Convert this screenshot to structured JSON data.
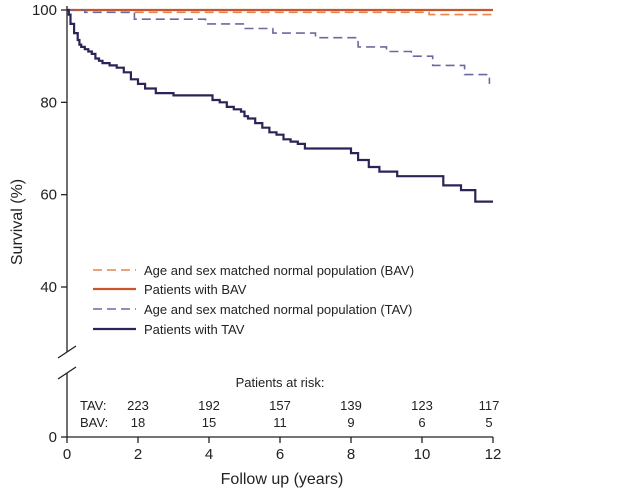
{
  "chart_data": {
    "type": "line",
    "xlabel": "Follow up (years)",
    "ylabel": "Survival (%)",
    "xlim": [
      0,
      12
    ],
    "ylim": [
      0,
      100
    ],
    "axis_break": [
      28,
      32
    ],
    "x_ticks": [
      "0",
      "2",
      "4",
      "6",
      "8",
      "10",
      "12"
    ],
    "y_ticks": [
      "0",
      "40",
      "60",
      "80",
      "100"
    ],
    "grid": false,
    "legend_position": "lower-left",
    "series": [
      {
        "name": "Age and sex matched normal population (BAV)",
        "color": "#e8834e",
        "style": "dashed",
        "x": [
          0,
          1.5,
          1.5,
          10.2,
          10.2,
          12
        ],
        "y": [
          100,
          100,
          99.5,
          99.5,
          99,
          99
        ]
      },
      {
        "name": "Patients with BAV",
        "color": "#c9552a",
        "style": "solid",
        "x": [
          0,
          12
        ],
        "y": [
          100,
          100
        ]
      },
      {
        "name": "Age and sex matched normal population (TAV)",
        "color": "#6b6aa0",
        "style": "dashed",
        "x": [
          0,
          0.5,
          0.5,
          1.9,
          1.9,
          3.9,
          3.9,
          5.0,
          5.0,
          5.8,
          5.8,
          7.0,
          7.0,
          8.2,
          8.2,
          9.0,
          9.0,
          9.7,
          9.7,
          10.3,
          10.3,
          11.2,
          11.2,
          11.9,
          11.9
        ],
        "y": [
          100,
          100,
          99.5,
          99.5,
          98,
          98,
          97,
          97,
          96,
          96,
          95,
          95,
          94,
          94,
          92,
          92,
          91,
          91,
          90,
          90,
          88,
          88,
          86,
          86,
          84
        ]
      },
      {
        "name": "Patients with TAV",
        "color": "#2b2458",
        "style": "solid",
        "x": [
          0,
          0.05,
          0.1,
          0.2,
          0.3,
          0.35,
          0.4,
          0.5,
          0.6,
          0.7,
          0.8,
          0.9,
          1.0,
          1.1,
          1.2,
          1.4,
          1.6,
          1.8,
          2.0,
          2.2,
          2.5,
          3.0,
          3.5,
          4.0,
          4.1,
          4.3,
          4.5,
          4.7,
          4.9,
          5.0,
          5.1,
          5.3,
          5.5,
          5.7,
          5.9,
          6.1,
          6.3,
          6.5,
          6.7,
          7.0,
          7.5,
          8.0,
          8.2,
          8.5,
          8.8,
          9.3,
          10.0,
          10.6,
          11.1,
          11.5,
          12.0
        ],
        "y": [
          100,
          99,
          97,
          95,
          93.5,
          92.5,
          92,
          91.5,
          91,
          90.5,
          89.5,
          89,
          88.5,
          88.5,
          88,
          87.5,
          86.5,
          85,
          84,
          83,
          82,
          81.5,
          81.5,
          81.5,
          80.5,
          80,
          79,
          78.5,
          78,
          77,
          76.5,
          75.5,
          74.5,
          73.5,
          73,
          72,
          71.5,
          71,
          70,
          70,
          70,
          69,
          67.5,
          66,
          65,
          64,
          64,
          62,
          61,
          58.5,
          58.5
        ]
      }
    ],
    "risk_table": {
      "title": "Patients at risk:",
      "times": [
        0,
        2,
        4,
        6,
        8,
        10,
        12
      ],
      "rows": [
        {
          "label": "TAV:",
          "values": [
            "223",
            "192",
            "157",
            "139",
            "123",
            "117"
          ]
        },
        {
          "label": "BAV:",
          "values": [
            "18",
            "15",
            "11",
            "9",
            "6",
            "5"
          ]
        }
      ]
    }
  }
}
